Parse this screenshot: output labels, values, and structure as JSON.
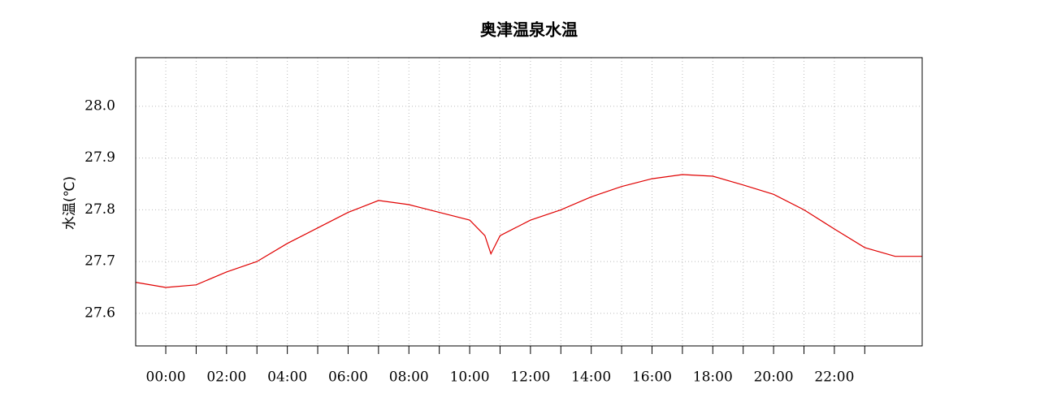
{
  "chart_data": {
    "type": "line",
    "title": "奥津温泉水温",
    "y_label": "水温(℃)",
    "x": [
      -1,
      0,
      1,
      2,
      3,
      4,
      5,
      6,
      7,
      8,
      9,
      10,
      10.5,
      10.7,
      11,
      12,
      13,
      14,
      15,
      16,
      17,
      18,
      19,
      20,
      21,
      22,
      23,
      24,
      24.9
    ],
    "series": [
      {
        "color": "#e00000",
        "values": [
          27.66,
          27.65,
          27.655,
          27.68,
          27.7,
          27.735,
          27.765,
          27.795,
          27.818,
          27.81,
          27.795,
          27.78,
          27.75,
          27.715,
          27.75,
          27.78,
          27.8,
          27.825,
          27.845,
          27.86,
          27.868,
          27.865,
          27.848,
          27.83,
          27.8,
          27.763,
          27.727,
          27.71,
          27.71
        ]
      }
    ],
    "xlim": [
      -0.99,
      24.89
    ],
    "xticks": [
      {
        "value": 0,
        "label": "00:00"
      },
      {
        "value": 2,
        "label": "02:00"
      },
      {
        "value": 4,
        "label": "04:00"
      },
      {
        "value": 6,
        "label": "06:00"
      },
      {
        "value": 8,
        "label": "08:00"
      },
      {
        "value": 10,
        "label": "10:00"
      },
      {
        "value": 12,
        "label": "12:00"
      },
      {
        "value": 14,
        "label": "14:00"
      },
      {
        "value": 16,
        "label": "16:00"
      },
      {
        "value": 18,
        "label": "18:00"
      },
      {
        "value": 20,
        "label": "20:00"
      },
      {
        "value": 22,
        "label": "22:00"
      }
    ],
    "xminorticks": [
      1,
      3,
      5,
      7,
      9,
      11,
      13,
      15,
      17,
      19,
      21,
      23
    ],
    "ylim": [
      27.537,
      28.094
    ],
    "yticks": [
      27.6,
      27.7,
      27.8,
      27.9,
      {
        "value": 28,
        "label": "28.0"
      }
    ],
    "grid": true
  }
}
